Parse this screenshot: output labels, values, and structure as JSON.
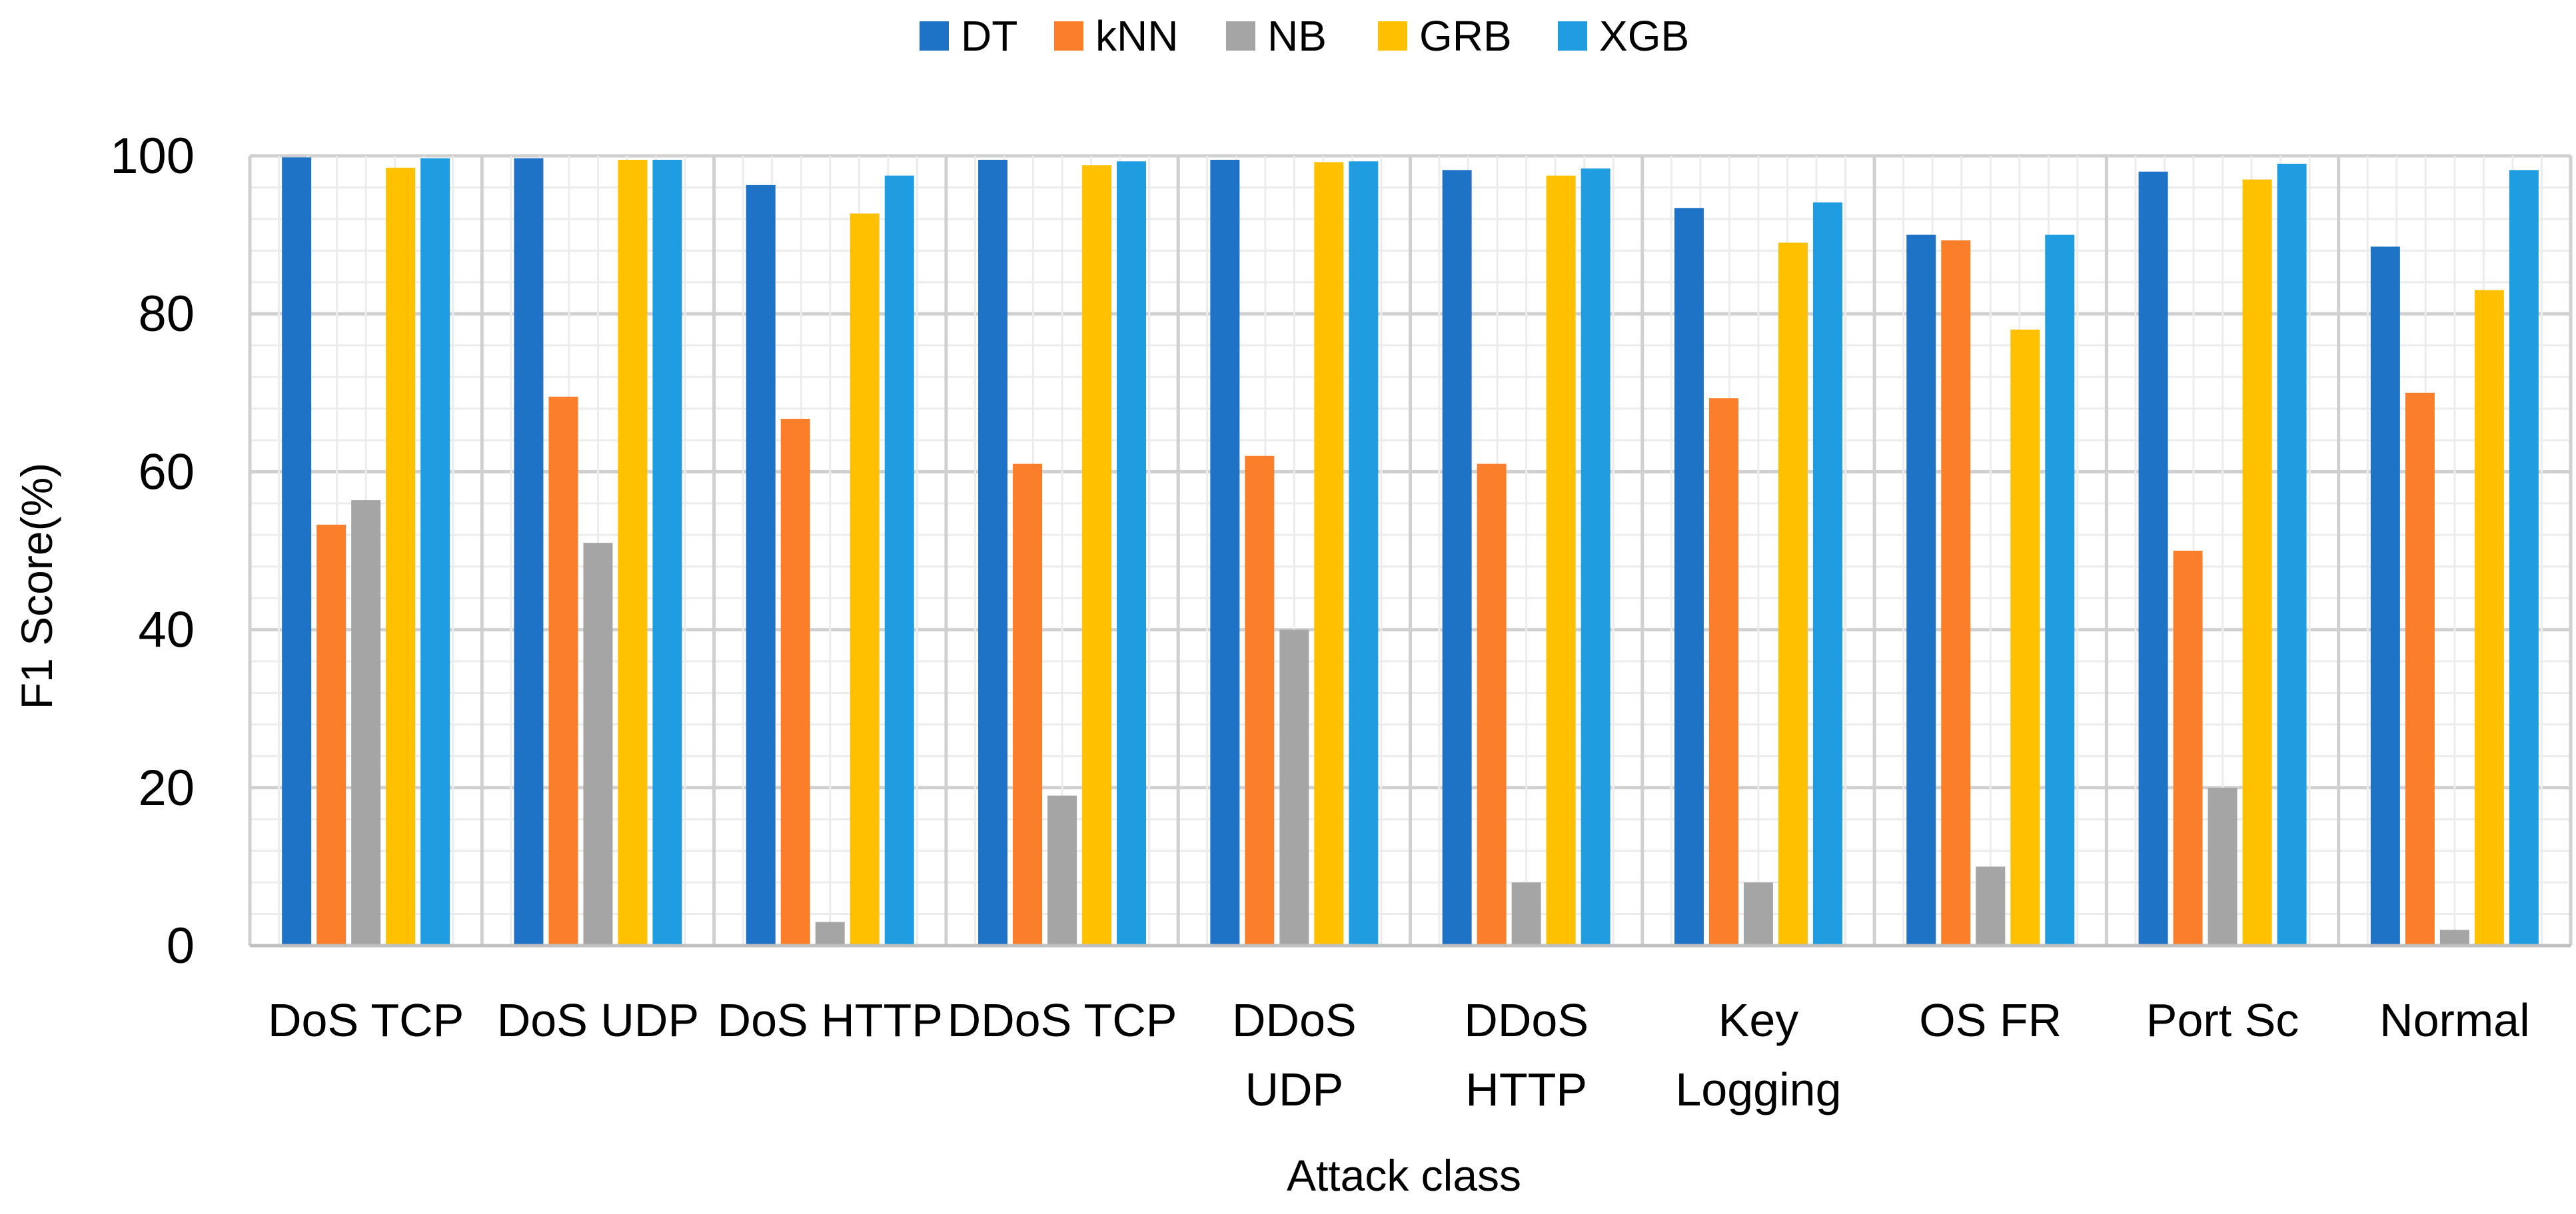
{
  "chart_data": {
    "type": "bar",
    "title": "",
    "xlabel": "Attack class",
    "ylabel": "F1 Score(%)",
    "ylim": [
      0,
      100
    ],
    "yticks": [
      "0",
      "20",
      "40",
      "60",
      "80",
      "100"
    ],
    "grid": true,
    "legend_position": "top-center",
    "categories": [
      [
        "DoS TCP"
      ],
      [
        "DoS UDP"
      ],
      [
        "DoS HTTP"
      ],
      [
        "DDoS TCP"
      ],
      [
        "DDoS",
        "UDP"
      ],
      [
        "DDoS",
        "HTTP"
      ],
      [
        "Key",
        "Logging"
      ],
      [
        "OS FR"
      ],
      [
        "Port Sc"
      ],
      [
        "Normal"
      ]
    ],
    "series": [
      {
        "name": "DT",
        "color": "#1F73C6",
        "values": [
          99.8,
          99.7,
          96.3,
          99.5,
          99.5,
          98.2,
          93.4,
          90.0,
          98.0,
          88.5
        ]
      },
      {
        "name": "kNN",
        "color": "#FB7E2A",
        "values": [
          53.3,
          69.5,
          66.7,
          61.0,
          62.0,
          61.0,
          69.3,
          89.3,
          50.0,
          70.0
        ]
      },
      {
        "name": "NB",
        "color": "#A5A5A5",
        "values": [
          56.4,
          51.0,
          3.0,
          19.0,
          40.0,
          8.0,
          8.0,
          10.0,
          20.0,
          2.0
        ]
      },
      {
        "name": "GRB",
        "color": "#FFC000",
        "values": [
          98.5,
          99.5,
          92.7,
          98.8,
          99.2,
          97.5,
          89.0,
          78.0,
          97.0,
          83.0
        ]
      },
      {
        "name": "XGB",
        "color": "#1F9DE0",
        "values": [
          99.7,
          99.5,
          97.5,
          99.3,
          99.3,
          98.4,
          94.1,
          90.0,
          99.0,
          98.2
        ]
      }
    ]
  }
}
